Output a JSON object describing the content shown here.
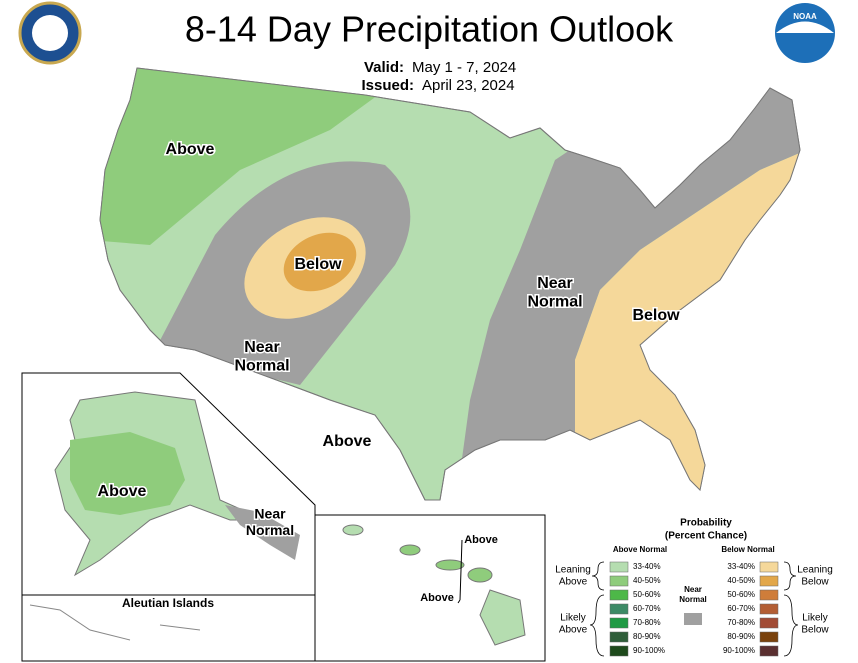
{
  "header": {
    "title": "8-14 Day Precipitation Outlook",
    "valid_label": "Valid:",
    "valid_date": "May 1 - 7, 2024",
    "issued_label": "Issued:",
    "issued_date": "April 23, 2024",
    "noaa_logo": "NOAA"
  },
  "map_labels": [
    {
      "lines": [
        "Above"
      ]
    },
    {
      "lines": [
        "Below"
      ]
    },
    {
      "lines": [
        "Near",
        "Normal"
      ]
    },
    {
      "lines": [
        "Above"
      ]
    },
    {
      "lines": [
        "Near",
        "Normal"
      ]
    },
    {
      "lines": [
        "Below"
      ]
    },
    {
      "lines": [
        "Above"
      ]
    },
    {
      "lines": [
        "Near",
        "Normal"
      ]
    },
    {
      "lines": [
        "Above"
      ]
    },
    {
      "lines": [
        "Above"
      ]
    }
  ],
  "insets": {
    "aleutian_title": "Aleutian Islands"
  },
  "legend": {
    "title_lines": [
      "Probability",
      "(Percent Chance)"
    ],
    "above_header": "Above Normal",
    "below_header": "Below Normal",
    "above": [
      {
        "label": "33-40%",
        "color": "#b5ddb0"
      },
      {
        "label": "40-50%",
        "color": "#8fcc7c"
      },
      {
        "label": "50-60%",
        "color": "#4db848"
      },
      {
        "label": "60-70%",
        "color": "#3d8a66"
      },
      {
        "label": "70-80%",
        "color": "#1f9a44"
      },
      {
        "label": "80-90%",
        "color": "#2f5e3a"
      },
      {
        "label": "90-100%",
        "color": "#1e4a1c"
      }
    ],
    "below": [
      {
        "label": "33-40%",
        "color": "#f5d89a"
      },
      {
        "label": "40-50%",
        "color": "#e2a74a"
      },
      {
        "label": "50-60%",
        "color": "#cf7d3a"
      },
      {
        "label": "60-70%",
        "color": "#b35e34"
      },
      {
        "label": "70-80%",
        "color": "#a24c35"
      },
      {
        "label": "80-90%",
        "color": "#7a420c"
      },
      {
        "label": "90-100%",
        "color": "#5a2f30"
      }
    ],
    "near_normal": {
      "lines": [
        "Near",
        "Normal"
      ],
      "color": "#a0a0a0"
    },
    "groups": {
      "leaning_above": [
        "Leaning",
        "Above"
      ],
      "likely_above": [
        "Likely",
        "Above"
      ],
      "leaning_below": [
        "Leaning",
        "Below"
      ],
      "likely_below": [
        "Likely",
        "Below"
      ]
    }
  }
}
